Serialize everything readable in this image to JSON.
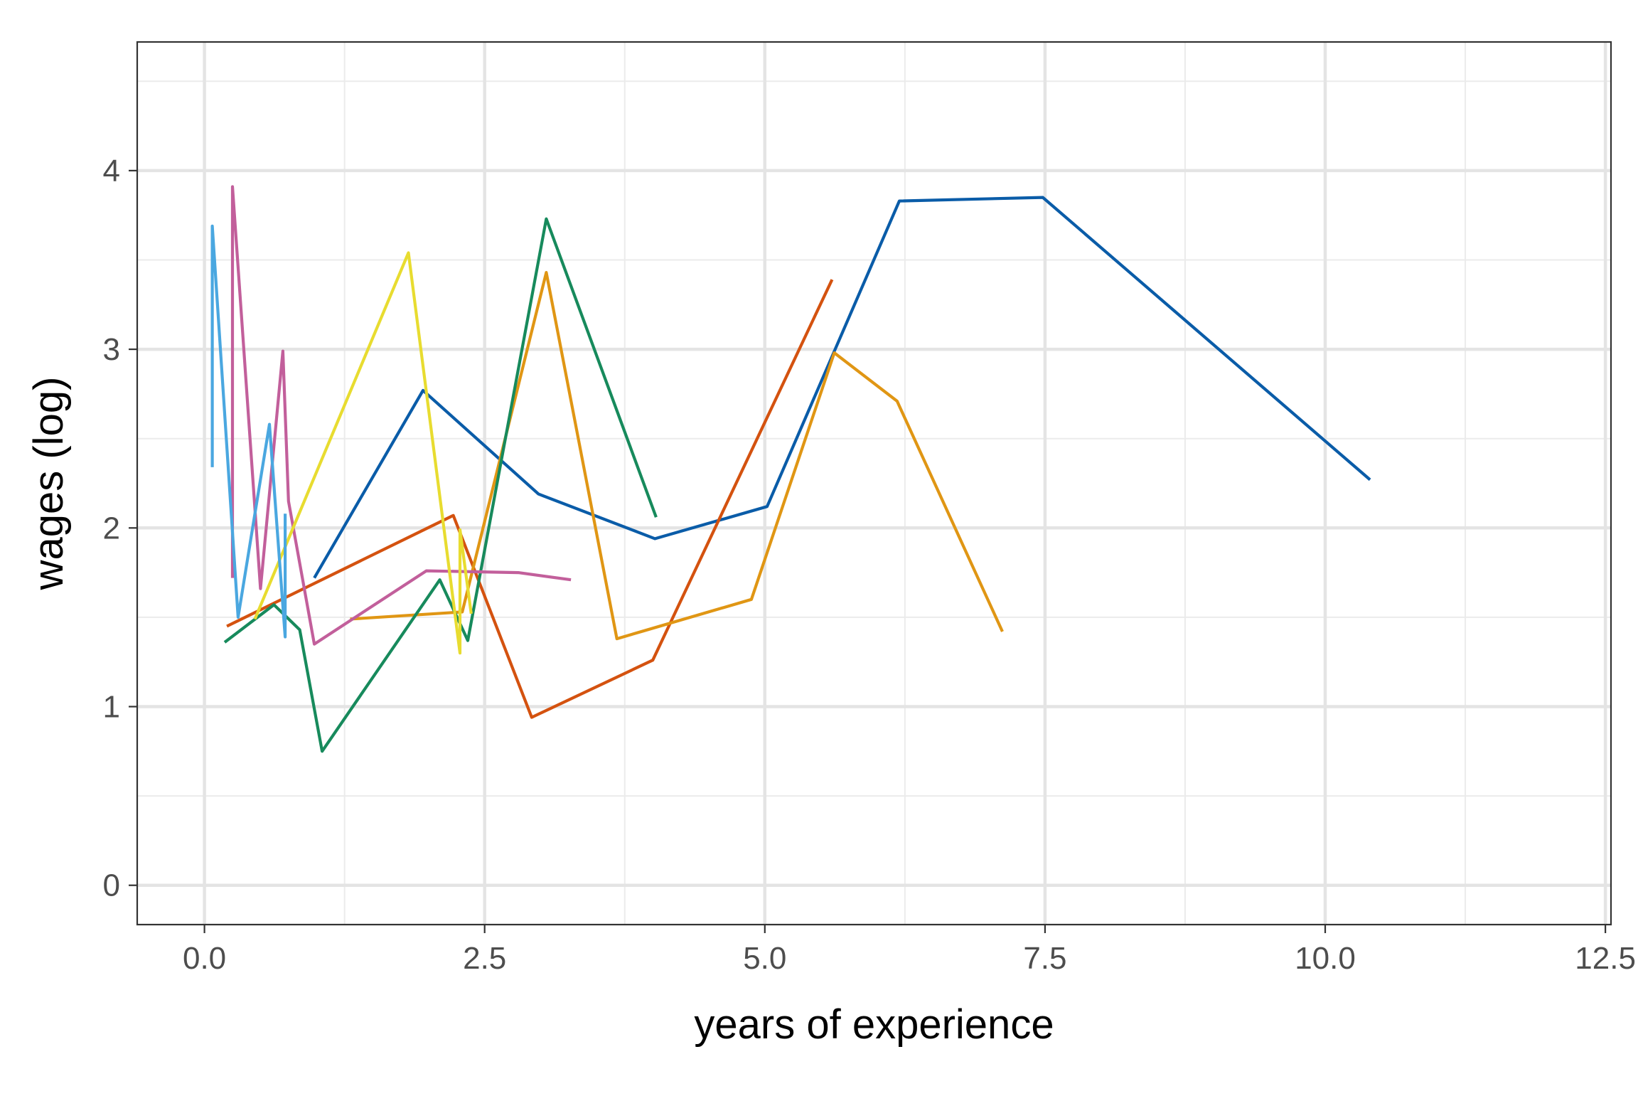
{
  "chart_data": {
    "type": "line",
    "title": "",
    "xlabel": "years of experience",
    "ylabel": "wages (log)",
    "xlim": [
      -0.6,
      12.55
    ],
    "ylim": [
      -0.22,
      4.72
    ],
    "x_ticks": [
      0,
      2.5,
      5,
      7.5,
      10,
      12.5
    ],
    "x_tick_labels": [
      "0.0",
      "2.5",
      "5.0",
      "7.5",
      "10.0",
      "12.5"
    ],
    "y_ticks": [
      0,
      1,
      2,
      3,
      4
    ],
    "y_tick_labels": [
      "0",
      "1",
      "2",
      "3",
      "4"
    ],
    "grid": true,
    "legend": "none",
    "series": [
      {
        "color": "#0a5ca8",
        "points": [
          [
            0.98,
            1.72
          ],
          [
            1.95,
            2.77
          ],
          [
            2.98,
            2.19
          ],
          [
            4.02,
            1.94
          ],
          [
            5.02,
            2.12
          ],
          [
            6.2,
            3.83
          ],
          [
            7.48,
            3.85
          ],
          [
            10.4,
            2.27
          ]
        ]
      },
      {
        "color": "#d4520f",
        "points": [
          [
            0.2,
            1.45
          ],
          [
            2.22,
            2.07
          ],
          [
            2.92,
            0.94
          ],
          [
            4.0,
            1.26
          ],
          [
            5.6,
            3.39
          ]
        ]
      },
      {
        "color": "#e09614",
        "points": [
          [
            1.3,
            1.49
          ],
          [
            2.3,
            1.53
          ],
          [
            3.05,
            3.43
          ],
          [
            3.68,
            1.38
          ],
          [
            4.88,
            1.6
          ],
          [
            5.62,
            2.98
          ],
          [
            6.18,
            2.71
          ],
          [
            7.12,
            1.42
          ]
        ]
      },
      {
        "color": "#178a5c",
        "points": [
          [
            0.18,
            1.36
          ],
          [
            0.62,
            1.57
          ],
          [
            0.85,
            1.43
          ],
          [
            1.05,
            0.75
          ],
          [
            2.1,
            1.71
          ],
          [
            2.35,
            1.37
          ],
          [
            3.05,
            3.73
          ],
          [
            4.03,
            2.06
          ]
        ]
      },
      {
        "color": "#c25f9b",
        "points": [
          [
            0.25,
            1.72
          ],
          [
            0.25,
            3.91
          ],
          [
            0.5,
            1.66
          ],
          [
            0.7,
            2.99
          ],
          [
            0.75,
            2.15
          ],
          [
            0.98,
            1.35
          ],
          [
            1.98,
            1.76
          ],
          [
            2.8,
            1.75
          ],
          [
            3.27,
            1.71
          ]
        ]
      },
      {
        "color": "#e8dc30",
        "points": [
          [
            0.45,
            1.49
          ],
          [
            1.82,
            3.54
          ],
          [
            2.28,
            1.3
          ],
          [
            2.28,
            1.99
          ],
          [
            2.38,
            1.52
          ]
        ]
      },
      {
        "color": "#4aa7e0",
        "points": [
          [
            0.07,
            2.34
          ],
          [
            0.07,
            3.69
          ],
          [
            0.3,
            1.5
          ],
          [
            0.58,
            2.58
          ],
          [
            0.72,
            1.39
          ],
          [
            0.72,
            2.08
          ]
        ]
      }
    ]
  }
}
